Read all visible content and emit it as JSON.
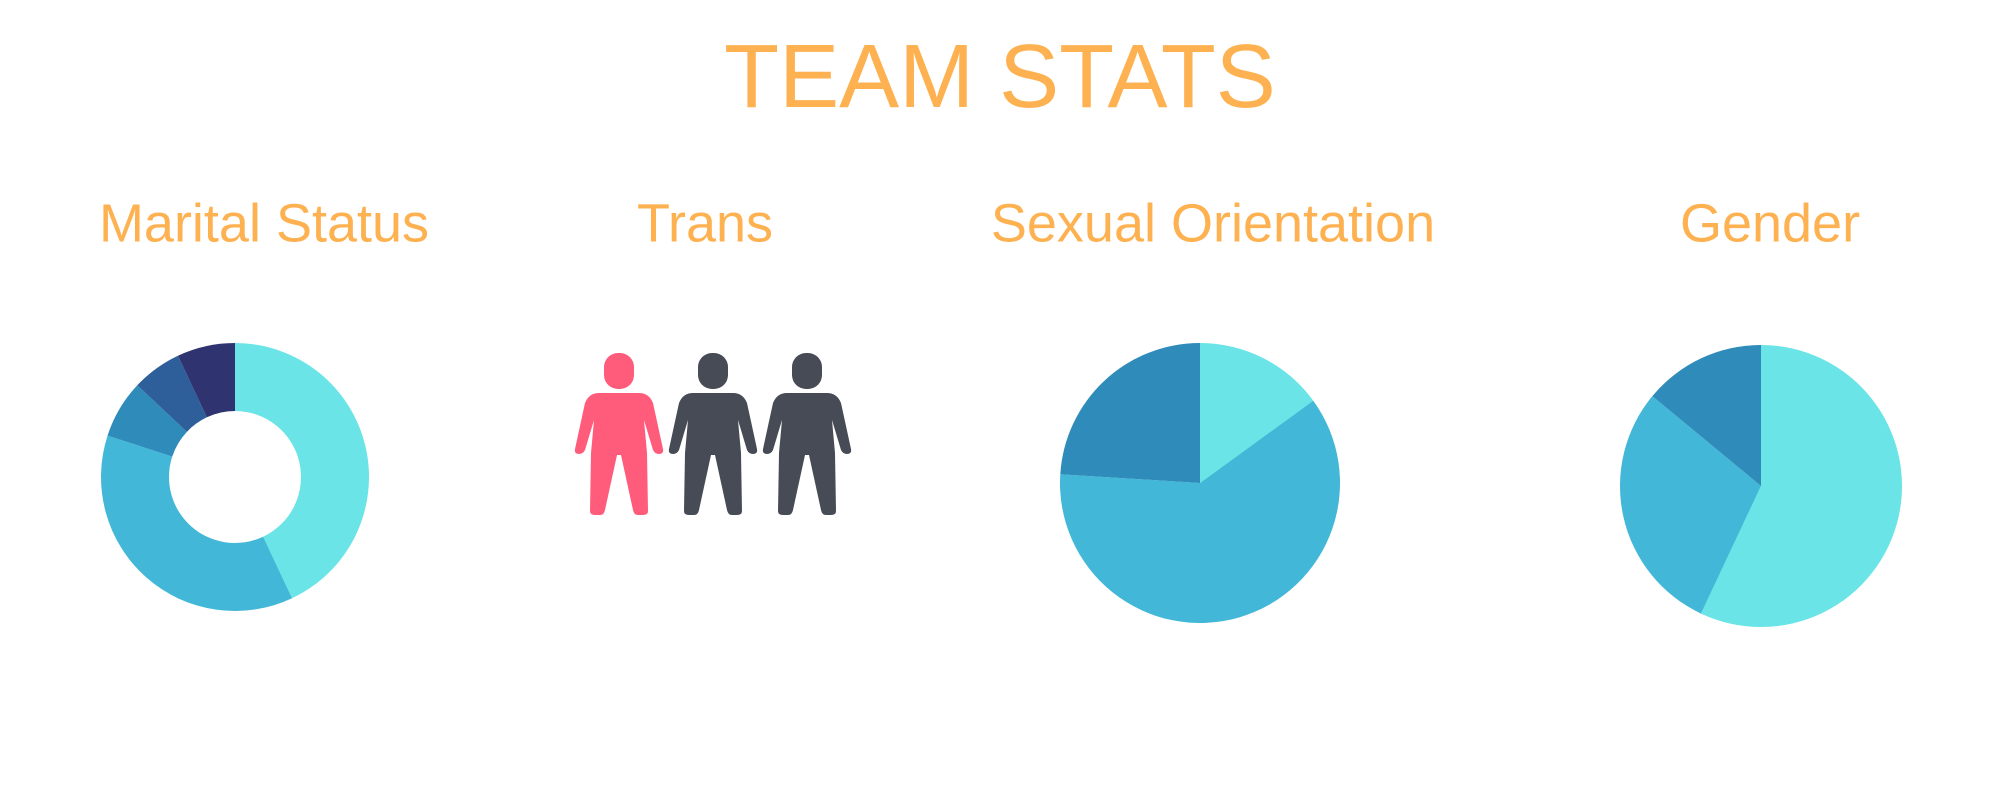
{
  "header": {
    "title": "TEAM STATS"
  },
  "chart_data": [
    {
      "type": "donut",
      "title": "Marital Status",
      "values": [
        43,
        37,
        7,
        6,
        7
      ],
      "colors": [
        "#6ae4e6",
        "#42b7d7",
        "#2e8bba",
        "#2f5f9a",
        "#2f3470"
      ]
    },
    {
      "type": "pictogram",
      "title": "Trans",
      "values": [
        1,
        2
      ],
      "colors": [
        "#ff5c7c",
        "#474b55"
      ]
    },
    {
      "type": "pie",
      "title": "Sexual Orientation",
      "values": [
        15,
        61,
        24
      ],
      "colors": [
        "#6ae4e6",
        "#42b7d7",
        "#2e8bba"
      ]
    },
    {
      "type": "pie",
      "title": "Gender",
      "values": [
        57,
        29,
        14
      ],
      "colors": [
        "#6ae4e6",
        "#42b7d7",
        "#2e8bba"
      ]
    }
  ]
}
